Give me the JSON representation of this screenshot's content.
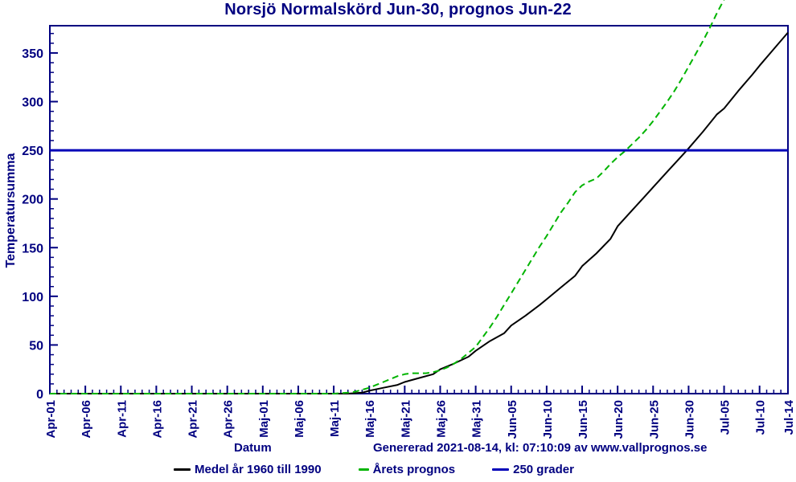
{
  "title": "Norsjö Normalskörd Jun-30, prognos Jun-22",
  "colors": {
    "text": "#000080",
    "frame": "#000080",
    "normal_line": "#000000",
    "prognos_line": "#00b400",
    "reference_line": "#0000b8",
    "background": "#ffffff"
  },
  "footer": {
    "xlabel": "Datum",
    "generated": "Genererad 2021-08-14, kl: 07:10:09 av www.vallprognos.se"
  },
  "legend": [
    {
      "label": "Medel år 1960 till 1990",
      "color": "#000000",
      "style": "solid"
    },
    {
      "label": "Årets prognos",
      "color": "#00b400",
      "style": "dashed"
    },
    {
      "label": "250 grader",
      "color": "#0000b8",
      "style": "solid"
    }
  ],
  "chart_data": {
    "type": "line",
    "title": "Norsjö Normalskörd Jun-30, prognos Jun-22",
    "xlabel": "Datum",
    "ylabel": "Temperatursumma",
    "x_unit": "days since Apr-01",
    "xlim": [
      0,
      104
    ],
    "ylim": [
      0,
      378
    ],
    "grid": false,
    "legend_position": "bottom",
    "x_ticks": {
      "days": [
        0,
        5,
        10,
        15,
        20,
        25,
        30,
        35,
        40,
        45,
        50,
        55,
        60,
        65,
        70,
        75,
        80,
        85,
        90,
        95,
        100,
        104
      ],
      "labels": [
        "Apr-01",
        "Apr-06",
        "Apr-11",
        "Apr-16",
        "Apr-21",
        "Apr-26",
        "Maj-01",
        "Maj-06",
        "Maj-11",
        "Maj-16",
        "Maj-21",
        "Maj-26",
        "Maj-31",
        "Jun-05",
        "Jun-10",
        "Jun-15",
        "Jun-20",
        "Jun-25",
        "Jun-30",
        "Jul-05",
        "Jul-10",
        "Jul-14"
      ]
    },
    "x_minor_step": 1,
    "y_ticks": [
      0,
      50,
      100,
      150,
      200,
      250,
      300,
      350
    ],
    "y_minor_step": 10,
    "reference_line": {
      "value": 250,
      "label": "250 grader"
    },
    "series": [
      {
        "name": "Medel år 1960 till 1990",
        "style": "solid",
        "color": "#000000",
        "points": [
          [
            0,
            0
          ],
          [
            5,
            0
          ],
          [
            10,
            0
          ],
          [
            15,
            0
          ],
          [
            20,
            0
          ],
          [
            25,
            0
          ],
          [
            30,
            0
          ],
          [
            35,
            0
          ],
          [
            40,
            0
          ],
          [
            42,
            0
          ],
          [
            44,
            1
          ],
          [
            45,
            3
          ],
          [
            47,
            6
          ],
          [
            49,
            9
          ],
          [
            50,
            12
          ],
          [
            52,
            16
          ],
          [
            54,
            20
          ],
          [
            55,
            25
          ],
          [
            57,
            31
          ],
          [
            59,
            38
          ],
          [
            60,
            44
          ],
          [
            62,
            54
          ],
          [
            64,
            62
          ],
          [
            65,
            70
          ],
          [
            67,
            80
          ],
          [
            69,
            91
          ],
          [
            70,
            97
          ],
          [
            72,
            109
          ],
          [
            74,
            121
          ],
          [
            75,
            131
          ],
          [
            77,
            144
          ],
          [
            79,
            159
          ],
          [
            80,
            172
          ],
          [
            82,
            188
          ],
          [
            84,
            204
          ],
          [
            85,
            212
          ],
          [
            87,
            228
          ],
          [
            89,
            244
          ],
          [
            90,
            252
          ],
          [
            92,
            269
          ],
          [
            94,
            287
          ],
          [
            95,
            293
          ],
          [
            97,
            311
          ],
          [
            99,
            328
          ],
          [
            100,
            337
          ],
          [
            102,
            354
          ],
          [
            104,
            371
          ]
        ]
      },
      {
        "name": "Årets prognos",
        "style": "dashed",
        "color": "#00b400",
        "points": [
          [
            0,
            0
          ],
          [
            5,
            0
          ],
          [
            10,
            0
          ],
          [
            15,
            0
          ],
          [
            20,
            0
          ],
          [
            25,
            0
          ],
          [
            30,
            0
          ],
          [
            35,
            0
          ],
          [
            40,
            0
          ],
          [
            42,
            1
          ],
          [
            43,
            2
          ],
          [
            44,
            4
          ],
          [
            45,
            6
          ],
          [
            46,
            9
          ],
          [
            47,
            12
          ],
          [
            48,
            15
          ],
          [
            49,
            18
          ],
          [
            50,
            20
          ],
          [
            51,
            21
          ],
          [
            52,
            21
          ],
          [
            53,
            21
          ],
          [
            54,
            22
          ],
          [
            55,
            24
          ],
          [
            56,
            27
          ],
          [
            57,
            31
          ],
          [
            58,
            36
          ],
          [
            59,
            42
          ],
          [
            60,
            48
          ],
          [
            61,
            58
          ],
          [
            62,
            68
          ],
          [
            63,
            79
          ],
          [
            64,
            91
          ],
          [
            65,
            103
          ],
          [
            66,
            115
          ],
          [
            67,
            127
          ],
          [
            68,
            139
          ],
          [
            69,
            151
          ],
          [
            70,
            162
          ],
          [
            71,
            174
          ],
          [
            72,
            186
          ],
          [
            73,
            196
          ],
          [
            74,
            207
          ],
          [
            75,
            214
          ],
          [
            76,
            218
          ],
          [
            77,
            221
          ],
          [
            78,
            228
          ],
          [
            79,
            236
          ],
          [
            80,
            243
          ],
          [
            81,
            249
          ],
          [
            82,
            256
          ],
          [
            83,
            263
          ],
          [
            84,
            271
          ],
          [
            85,
            280
          ],
          [
            86,
            290
          ],
          [
            87,
            300
          ],
          [
            88,
            311
          ],
          [
            89,
            323
          ],
          [
            90,
            336
          ],
          [
            91,
            349
          ],
          [
            92,
            362
          ],
          [
            93,
            376
          ],
          [
            94,
            391
          ],
          [
            95,
            405
          ]
        ]
      }
    ]
  }
}
